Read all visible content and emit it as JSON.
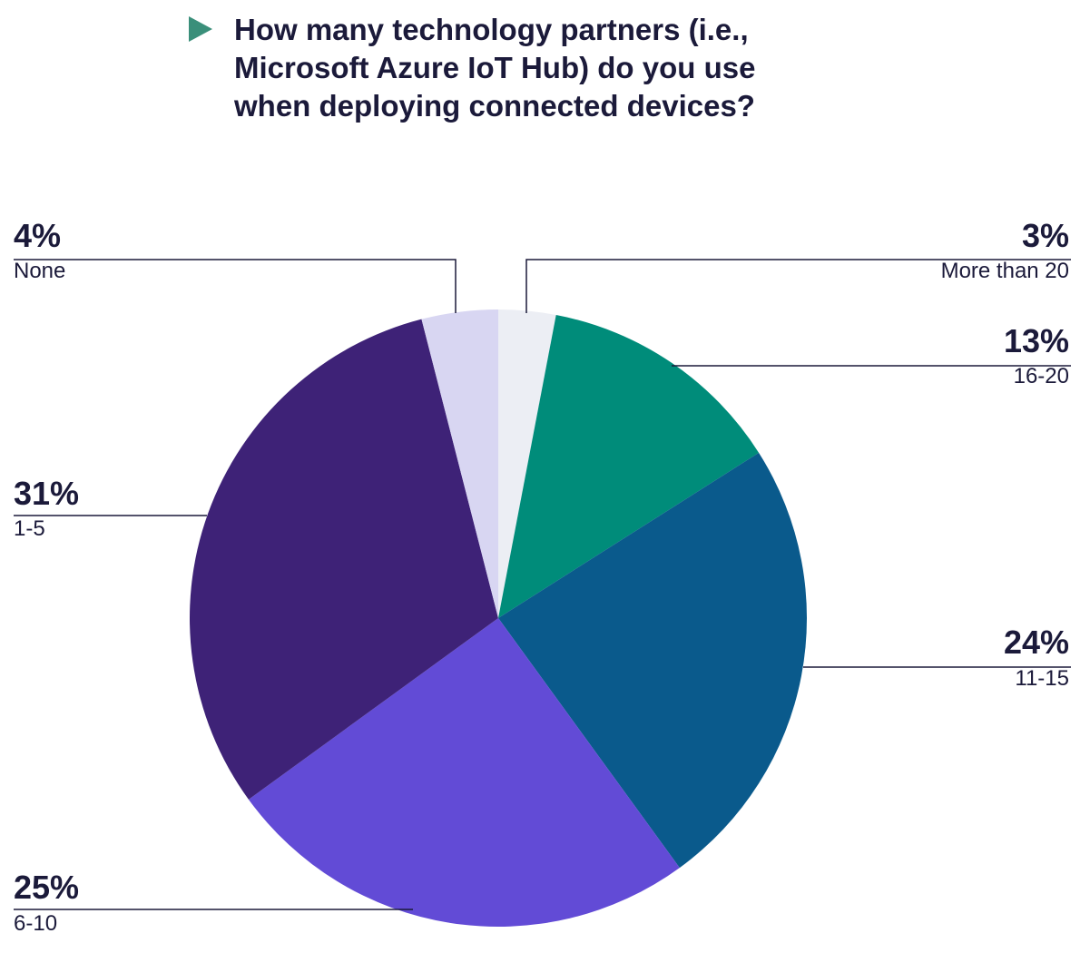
{
  "chart_data": {
    "type": "pie",
    "title": "How many technology partners (i.e., Microsoft Azure IoT Hub) do you use when deploying connected devices?",
    "categories": [
      "More than 20",
      "16-20",
      "11-15",
      "6-10",
      "1-5",
      "None"
    ],
    "values": [
      3,
      13,
      24,
      25,
      31,
      4
    ],
    "value_labels": [
      "3%",
      "13%",
      "24%",
      "25%",
      "31%",
      "4%"
    ],
    "colors": [
      "#eceef4",
      "#008c7a",
      "#0a5a8c",
      "#624bd6",
      "#3e2277",
      "#d8d6f2"
    ]
  }
}
